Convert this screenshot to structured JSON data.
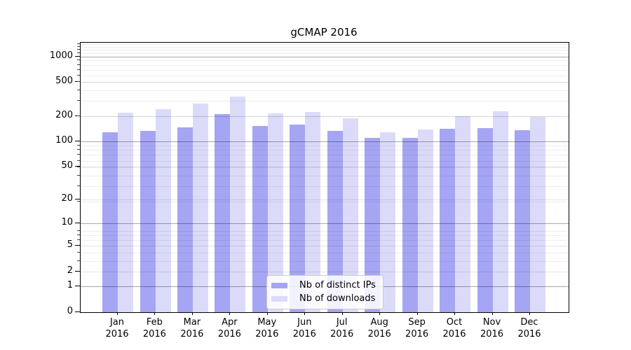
{
  "chart_data": {
    "type": "bar",
    "title": "gCMAP 2016",
    "year": "2016",
    "months": [
      "Jan",
      "Feb",
      "Mar",
      "Apr",
      "May",
      "Jun",
      "Jul",
      "Aug",
      "Sep",
      "Oct",
      "Nov",
      "Dec"
    ],
    "categories": [
      "Jan 2016",
      "Feb 2016",
      "Mar 2016",
      "Apr 2016",
      "May 2016",
      "Jun 2016",
      "Jul 2016",
      "Aug 2016",
      "Sep 2016",
      "Oct 2016",
      "Nov 2016",
      "Dec 2016"
    ],
    "series": [
      {
        "name": "Nb of distinct IPs",
        "color": "#a5a5f3",
        "values": [
          129,
          132,
          145,
          212,
          152,
          157,
          133,
          109,
          109,
          141,
          144,
          136
        ]
      },
      {
        "name": "Nb of downloads",
        "color": "#dbdbf9",
        "values": [
          220,
          241,
          278,
          340,
          216,
          224,
          188,
          128,
          137,
          199,
          226,
          196
        ]
      }
    ],
    "xlabel": "",
    "ylabel": "",
    "yscale": "log1p",
    "yticks": [
      0,
      1,
      2,
      5,
      10,
      20,
      50,
      100,
      200,
      500,
      1000
    ],
    "ylim": [
      0,
      1450
    ],
    "grid": true,
    "legend_position": "inside-bottom-center"
  }
}
